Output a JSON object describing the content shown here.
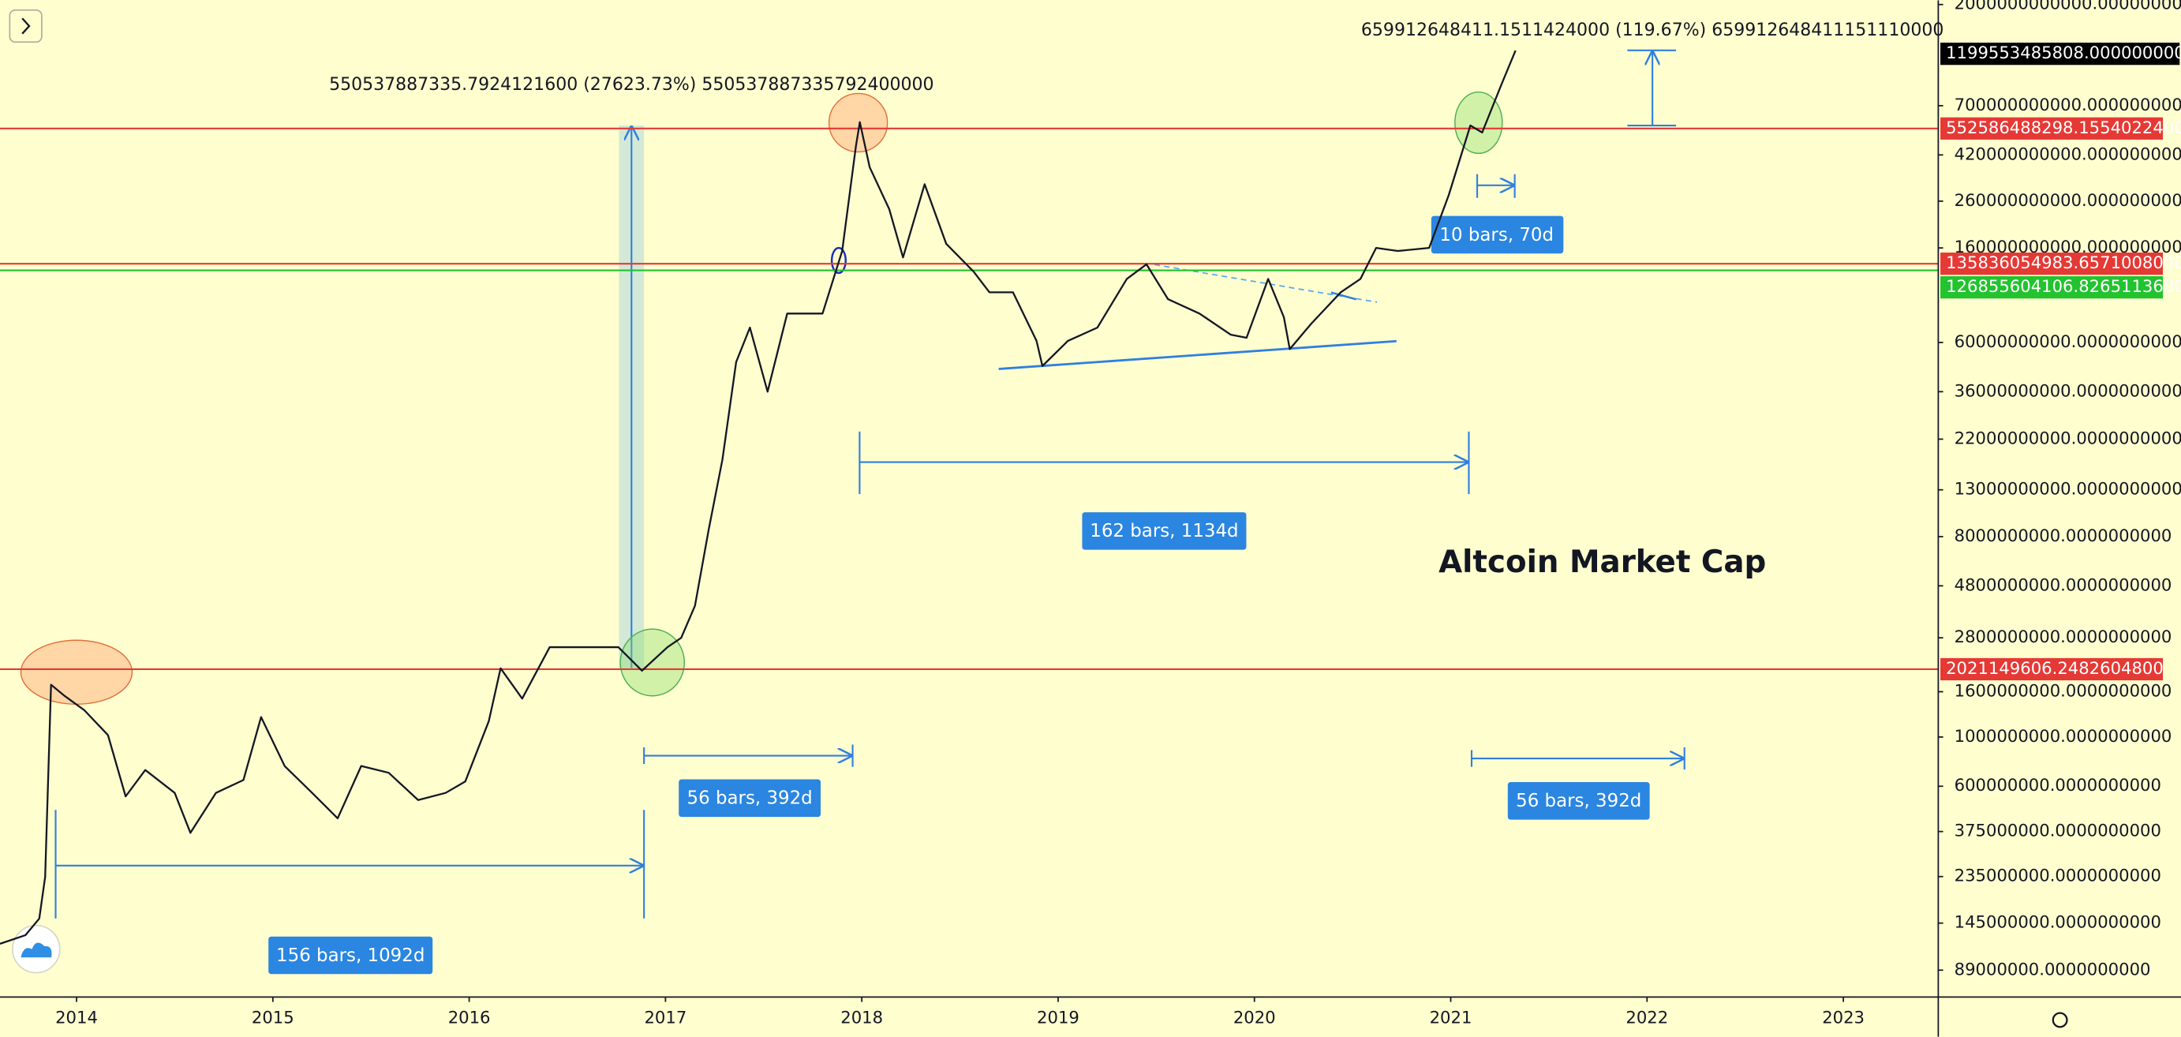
{
  "chart_data": {
    "type": "line",
    "title": "Altcoin Market Cap",
    "color": "#131722",
    "log_scale": true,
    "grid": false,
    "x": [
      2013.61,
      2013.74,
      2013.81,
      2013.84,
      2013.87,
      2013.94,
      2014.04,
      2014.16,
      2014.25,
      2014.35,
      2014.5,
      2014.58,
      2014.71,
      2014.85,
      2014.94,
      2015.06,
      2015.2,
      2015.33,
      2015.45,
      2015.59,
      2015.74,
      2015.88,
      2015.98,
      2016.1,
      2016.16,
      2016.27,
      2016.41,
      2016.62,
      2016.76,
      2016.88,
      2017.01,
      2017.08,
      2017.15,
      2017.22,
      2017.29,
      2017.36,
      2017.43,
      2017.52,
      2017.62,
      2017.7,
      2017.8,
      2017.9,
      2017.97,
      2017.99,
      2018.04,
      2018.14,
      2018.21,
      2018.32,
      2018.43,
      2018.57,
      2018.65,
      2018.77,
      2018.89,
      2018.92,
      2019.05,
      2019.2,
      2019.35,
      2019.45,
      2019.56,
      2019.72,
      2019.88,
      2019.96,
      2020.07,
      2020.15,
      2020.18,
      2020.29,
      2020.44,
      2020.54,
      2020.62,
      2020.73,
      2020.89,
      2020.99,
      2021.1,
      2021.16,
      2021.26,
      2021.33
    ],
    "values": [
      117000000,
      128000000,
      152000000,
      234000000,
      1720000000,
      1530000000,
      1320000000,
      1020000000,
      540000000,
      710000000,
      560000000,
      370000000,
      560000000,
      640000000,
      1230000000,
      740000000,
      560000000,
      430000000,
      740000000,
      690000000,
      520000000,
      560000000,
      630000000,
      1180000000,
      2040000000,
      1490000000,
      2540000000,
      2540000000,
      2540000000,
      1990000000,
      2540000000,
      2800000000,
      3900000000,
      8600000000,
      17800000000,
      49000000000,
      70000000000,
      36000000000,
      81000000000,
      81000000000,
      81000000000,
      155000000000,
      460000000000,
      590000000000,
      370000000000,
      239000000000,
      145000000000,
      310000000000,
      167000000000,
      125000000000,
      101000000000,
      101000000000,
      61000000000,
      47000000000,
      61000000000,
      70000000000,
      116000000000,
      135000000000,
      94000000000,
      81000000000,
      65000000000,
      63000000000,
      116000000000,
      78000000000,
      56000000000,
      73000000000,
      101000000000,
      116000000000,
      160000000000,
      155000000000,
      160000000000,
      277000000000,
      570000000000,
      530000000000,
      880000000000,
      1240000000000
    ],
    "xlim": [
      2013.61,
      2023.48
    ],
    "xticks": [
      2014,
      2015,
      2016,
      2017,
      2018,
      2019,
      2020,
      2021,
      2022,
      2023
    ],
    "ylim": [
      67800000,
      2090000000000
    ],
    "yticks": [
      {
        "value": 2000000000000,
        "label": "2000000000000.0000000000"
      },
      {
        "value": 700000000000,
        "label": "700000000000.0000000000"
      },
      {
        "value": 420000000000,
        "label": "420000000000.0000000000"
      },
      {
        "value": 260000000000,
        "label": "260000000000.0000000000"
      },
      {
        "value": 160000000000,
        "label": "160000000000.0000000000"
      },
      {
        "value": 60000000000,
        "label": "60000000000.0000000000"
      },
      {
        "value": 36000000000,
        "label": "36000000000.0000000000"
      },
      {
        "value": 22000000000,
        "label": "22000000000.0000000000"
      },
      {
        "value": 13000000000,
        "label": "13000000000.0000000000"
      },
      {
        "value": 8000000000,
        "label": "8000000000.0000000000"
      },
      {
        "value": 4800000000,
        "label": "4800000000.0000000000"
      },
      {
        "value": 2800000000,
        "label": "2800000000.0000000000"
      },
      {
        "value": 1600000000,
        "label": "1600000000.0000000000"
      },
      {
        "value": 1000000000,
        "label": "1000000000.0000000000"
      },
      {
        "value": 600000000,
        "label": "600000000.0000000000"
      },
      {
        "value": 375000000,
        "label": "375000000.0000000000"
      },
      {
        "value": 235000000,
        "label": "235000000.0000000000"
      },
      {
        "value": 145000000,
        "label": "145000000.0000000000"
      },
      {
        "value": 89000000,
        "label": "89000000.0000000000"
      }
    ],
    "last_price": {
      "value": 1199553485808,
      "label": "1199553485808.0000000000",
      "color": "#000000"
    },
    "price_lines": [
      {
        "value": 552586488298.1554,
        "label": "552586488298.1554022400",
        "color": "#e53935"
      },
      {
        "value": 135836054983.6571,
        "label": "135836054983.6571008000",
        "color": "#e53935"
      },
      {
        "value": 126855604106.8265,
        "label": "126855604106.8265113600",
        "color": "#22c32e"
      },
      {
        "value": 2021149606.2482605,
        "label": "2021149606.2482604800",
        "color": "#e53935"
      }
    ],
    "price_range_labels": [
      "550537887335.7924121600 (27623.73%) 550537887335792400000",
      "659912648411.1511424000 (119.67%) 659912648411151110000"
    ],
    "date_range_labels": [
      "156 bars, 1092d",
      "56 bars, 392d",
      "162 bars, 1134d",
      "56 bars, 392d",
      "10 bars, 70d"
    ]
  }
}
